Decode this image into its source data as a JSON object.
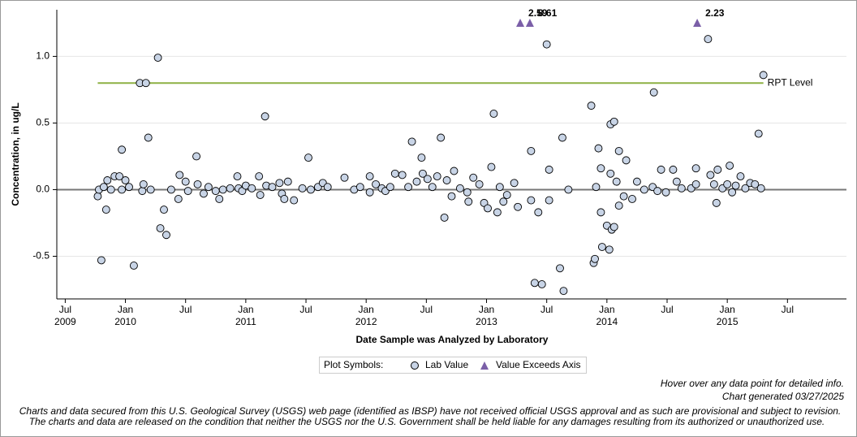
{
  "chart_data": {
    "type": "scatter",
    "y_axis_label": "Concentration, in ug/L",
    "x_axis_label": "Date Sample was Analyzed by Laboratory",
    "xlim": [
      2009.43,
      2015.99
    ],
    "ylim": [
      -0.82,
      1.35
    ],
    "xticks": [
      {
        "value": 2009.5,
        "label": "Jul",
        "year": "2009"
      },
      {
        "value": 2010.0,
        "label": "Jan",
        "year": "2010"
      },
      {
        "value": 2010.5,
        "label": "Jul"
      },
      {
        "value": 2011.0,
        "label": "Jan",
        "year": "2011"
      },
      {
        "value": 2011.5,
        "label": "Jul"
      },
      {
        "value": 2012.0,
        "label": "Jan",
        "year": "2012"
      },
      {
        "value": 2012.5,
        "label": "Jul"
      },
      {
        "value": 2013.0,
        "label": "Jan",
        "year": "2013"
      },
      {
        "value": 2013.5,
        "label": "Jul"
      },
      {
        "value": 2014.0,
        "label": "Jan",
        "year": "2014"
      },
      {
        "value": 2014.5,
        "label": "Jul"
      },
      {
        "value": 2015.0,
        "label": "Jan",
        "year": "2015"
      },
      {
        "value": 2015.5,
        "label": "Jul"
      }
    ],
    "yticks": [
      {
        "value": -0.5,
        "label": "-0.5"
      },
      {
        "value": 0,
        "label": "0.0"
      },
      {
        "value": 0.5,
        "label": "0.5"
      },
      {
        "value": 1,
        "label": "1.0"
      }
    ],
    "grid": true,
    "reference_line": {
      "label": "RPT Level",
      "value": 0.8,
      "x": [
        2009.77,
        2015.3
      ],
      "color": "#8db043"
    },
    "series": [
      {
        "name": "Lab Value",
        "color": "#c8d4e6",
        "x": [
          2009.77,
          2009.78,
          2009.8,
          2009.82,
          2009.84,
          2009.85,
          2009.88,
          2009.91,
          2009.95,
          2009.97,
          2009.97,
          2010.0,
          2010.03,
          2010.07,
          2010.12,
          2010.14,
          2010.15,
          2010.17,
          2010.19,
          2010.21,
          2010.27,
          2010.29,
          2010.32,
          2010.34,
          2010.38,
          2010.44,
          2010.45,
          2010.5,
          2010.52,
          2010.59,
          2010.6,
          2010.65,
          2010.69,
          2010.75,
          2010.78,
          2010.81,
          2010.87,
          2010.93,
          2010.94,
          2010.97,
          2011.0,
          2011.05,
          2011.11,
          2011.12,
          2011.16,
          2011.17,
          2011.22,
          2011.28,
          2011.3,
          2011.32,
          2011.35,
          2011.4,
          2011.47,
          2011.52,
          2011.54,
          2011.6,
          2011.64,
          2011.68,
          2011.82,
          2011.9,
          2011.95,
          2012.03,
          2012.03,
          2012.08,
          2012.13,
          2012.16,
          2012.2,
          2012.24,
          2012.3,
          2012.35,
          2012.38,
          2012.42,
          2012.46,
          2012.47,
          2012.51,
          2012.55,
          2012.59,
          2012.62,
          2012.65,
          2012.67,
          2012.71,
          2012.73,
          2012.78,
          2012.84,
          2012.85,
          2012.89,
          2012.94,
          2012.98,
          2013.01,
          2013.04,
          2013.06,
          2013.09,
          2013.11,
          2013.14,
          2013.17,
          2013.23,
          2013.26,
          2013.37,
          2013.37,
          2013.4,
          2013.43,
          2013.46,
          2013.5,
          2013.52,
          2013.52,
          2013.61,
          2013.63,
          2013.64,
          2013.68,
          2013.87,
          2013.89,
          2013.9,
          2013.91,
          2013.93,
          2013.95,
          2013.95,
          2013.96,
          2014.0,
          2014.02,
          2014.03,
          2014.03,
          2014.04,
          2014.06,
          2014.06,
          2014.08,
          2014.1,
          2014.1,
          2014.14,
          2014.16,
          2014.21,
          2014.25,
          2014.31,
          2014.38,
          2014.39,
          2014.42,
          2014.45,
          2014.49,
          2014.55,
          2014.58,
          2014.62,
          2014.7,
          2014.74,
          2014.74,
          2014.84,
          2014.86,
          2014.89,
          2014.91,
          2014.92,
          2014.96,
          2015.0,
          2015.02,
          2015.04,
          2015.07,
          2015.11,
          2015.15,
          2015.19,
          2015.23,
          2015.26,
          2015.28,
          2015.3
        ],
        "values": [
          -0.05,
          0.0,
          -0.53,
          0.02,
          -0.15,
          0.07,
          0.0,
          0.1,
          0.1,
          0.0,
          0.3,
          0.07,
          0.02,
          -0.57,
          0.8,
          -0.01,
          0.04,
          0.8,
          0.39,
          0.0,
          0.99,
          -0.29,
          -0.15,
          -0.34,
          0.0,
          -0.07,
          0.11,
          0.06,
          -0.01,
          0.25,
          0.04,
          -0.03,
          0.02,
          -0.01,
          -0.07,
          0.0,
          0.01,
          0.1,
          0.01,
          -0.01,
          0.03,
          0.01,
          0.1,
          -0.04,
          0.55,
          0.03,
          0.02,
          0.05,
          -0.03,
          -0.07,
          0.06,
          -0.08,
          0.01,
          0.24,
          0.0,
          0.02,
          0.05,
          0.02,
          0.09,
          0.0,
          0.02,
          0.1,
          -0.02,
          0.04,
          0.01,
          -0.01,
          0.02,
          0.12,
          0.11,
          0.02,
          0.36,
          0.06,
          0.24,
          0.12,
          0.08,
          0.02,
          0.1,
          0.39,
          -0.21,
          0.07,
          -0.05,
          0.14,
          0.01,
          -0.02,
          -0.09,
          0.09,
          0.04,
          -0.1,
          -0.14,
          0.17,
          0.57,
          -0.17,
          0.02,
          -0.09,
          -0.04,
          0.05,
          -0.13,
          0.29,
          -0.08,
          -0.7,
          -0.17,
          -0.71,
          1.09,
          0.15,
          -0.08,
          -0.59,
          0.39,
          -0.76,
          0.0,
          0.63,
          -0.55,
          -0.52,
          0.02,
          0.31,
          0.16,
          -0.17,
          -0.43,
          -0.27,
          -0.45,
          0.12,
          0.49,
          -0.3,
          0.51,
          -0.28,
          0.06,
          0.29,
          -0.12,
          -0.05,
          0.22,
          -0.07,
          0.06,
          0.0,
          0.02,
          0.73,
          -0.01,
          0.15,
          -0.02,
          0.15,
          0.06,
          0.01,
          0.01,
          0.16,
          0.04,
          1.13,
          0.11,
          0.04,
          -0.1,
          0.15,
          0.01,
          0.04,
          0.18,
          -0.02,
          0.03,
          0.1,
          0.01,
          0.05,
          0.04,
          0.42,
          0.01,
          0.86
        ]
      },
      {
        "name": "Value Exceeds Axis",
        "color": "#7b5fa8",
        "marker": "triangle",
        "x": [
          2013.28,
          2013.36,
          2014.75
        ],
        "values": [
          2.59,
          8.61,
          2.23
        ]
      }
    ],
    "legend_title": "Plot Symbols:",
    "notes": [
      "Hover over any data point for detailed info.",
      "Chart generated 03/27/2025"
    ],
    "disclaimer": [
      "Charts and data secured from this U.S. Geological Survey (USGS) web page (identified as IBSP) have not received official USGS approval and as such are provisional and subject to revision.",
      "The charts and data are released on the condition that neither the USGS nor the U.S. Government shall be held liable for any damages resulting from its authorized or unauthorized use."
    ]
  }
}
